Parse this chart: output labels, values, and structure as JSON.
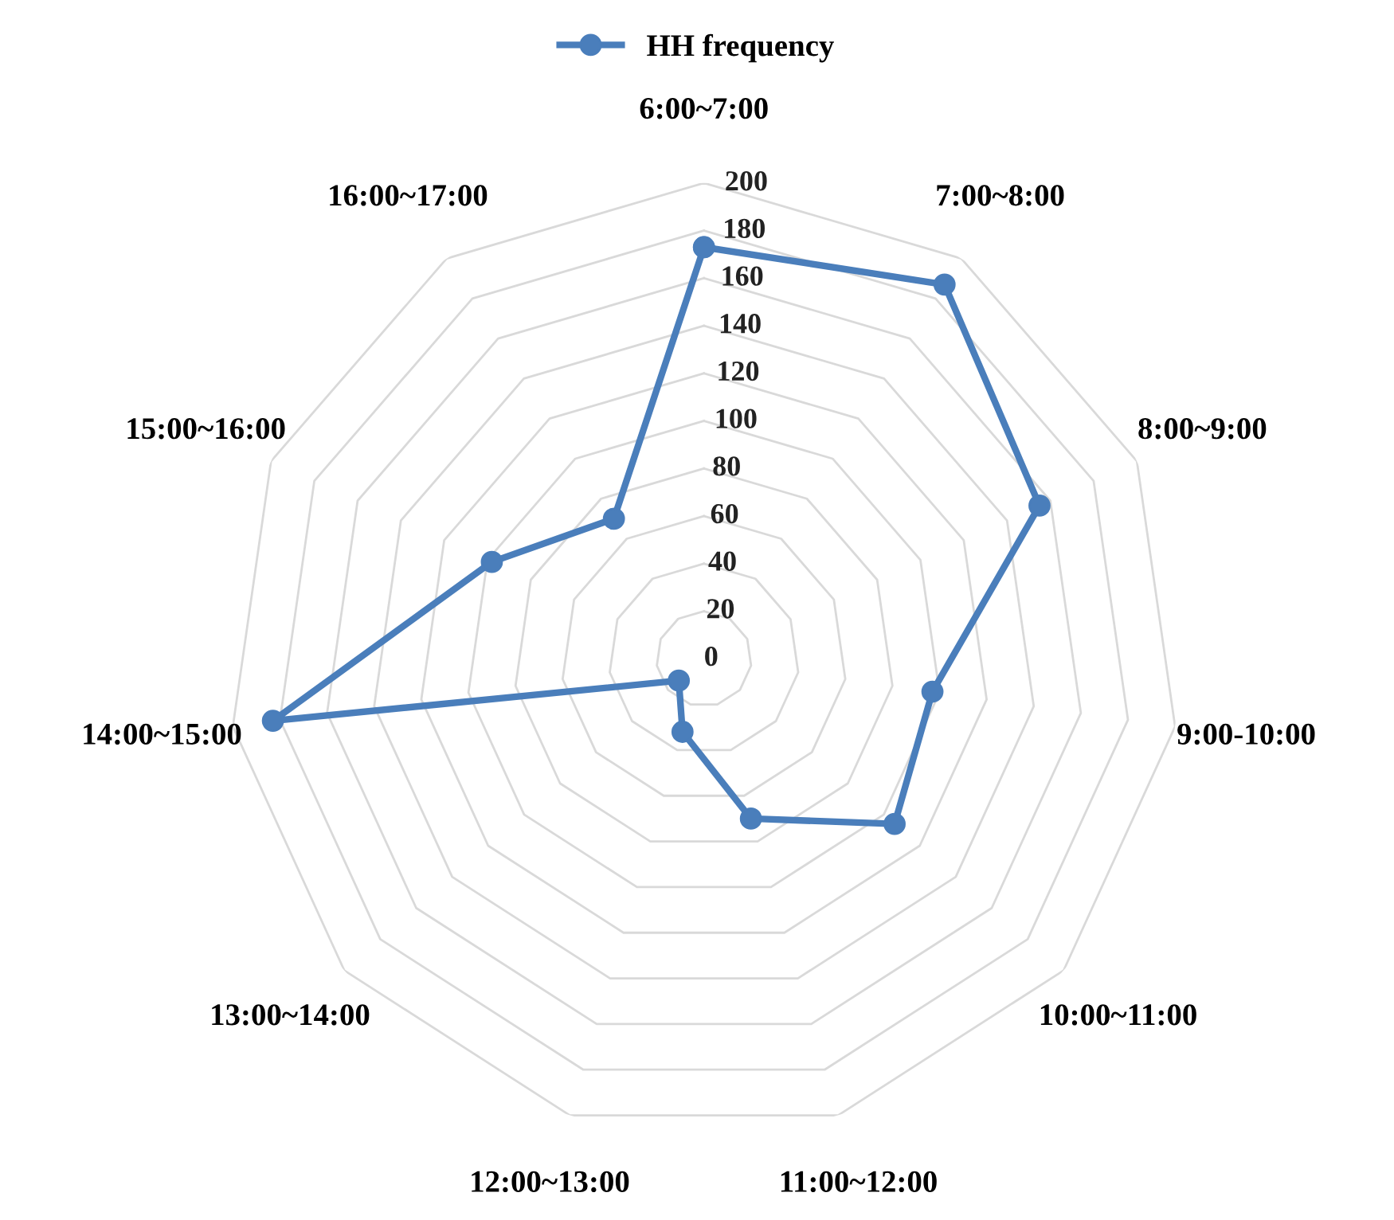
{
  "chart_data": {
    "type": "radar",
    "categories": [
      "6:00~7:00",
      "7:00~8:00",
      "8:00~9:00",
      "9:00-10:00",
      "10:00~11:00",
      "11:00~12:00",
      "12:00~13:00",
      "13:00~14:00",
      "14:00~15:00",
      "15:00~16:00",
      "16:00~17:00"
    ],
    "series": [
      {
        "name": "HH frequency",
        "color": "#4a7ebb",
        "values": [
          173,
          187,
          155,
          97,
          106,
          70,
          32,
          14,
          183,
          98,
          70
        ]
      }
    ],
    "ylim": [
      0,
      200
    ],
    "yticks": [
      0,
      20,
      40,
      60,
      80,
      100,
      120,
      140,
      160,
      180,
      200
    ],
    "grid": true,
    "legend": "top",
    "marker": "circle",
    "line_style": "solid"
  }
}
